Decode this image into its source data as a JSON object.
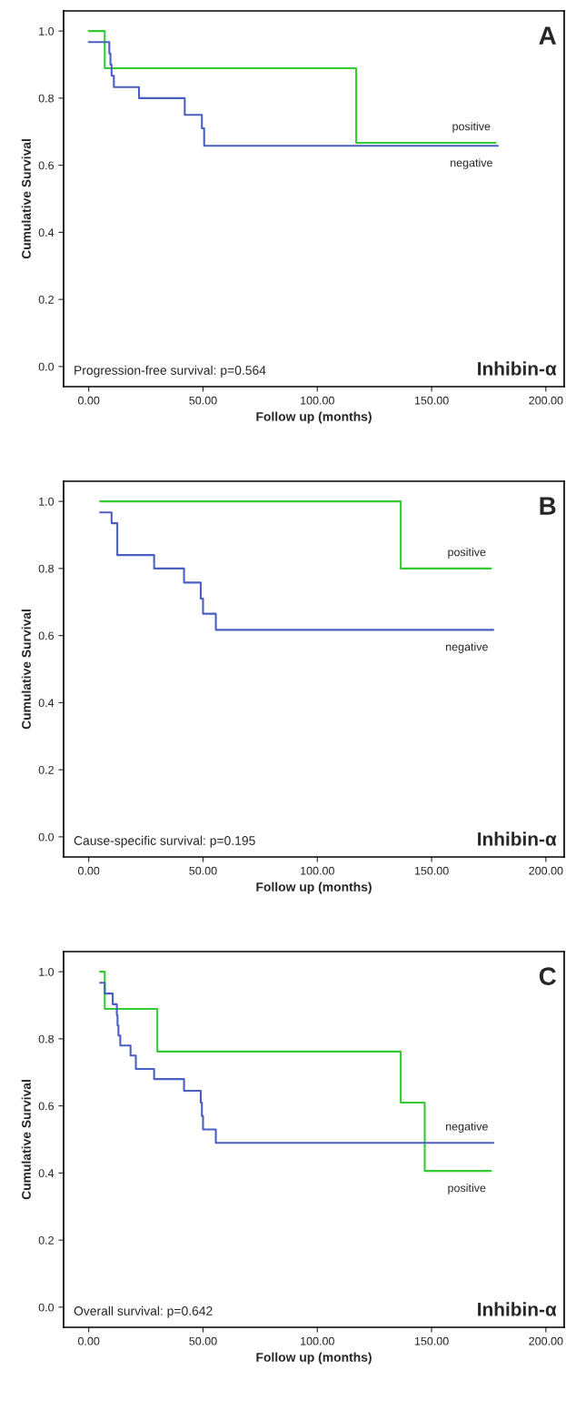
{
  "chart_data": [
    {
      "type": "step",
      "title": "A",
      "xlabel": "Follow up (months)",
      "ylabel": "Cumulative Survival",
      "xlim": [
        -11,
        208
      ],
      "ylim": [
        -0.06,
        1.06
      ],
      "xticks": [
        {
          "value": 0,
          "label": "0.00"
        },
        {
          "value": 50,
          "label": "50.00"
        },
        {
          "value": 100,
          "label": "100.00"
        },
        {
          "value": 150,
          "label": "150.00"
        },
        {
          "value": 200,
          "label": "200.00"
        }
      ],
      "yticks": [
        {
          "value": 0,
          "label": "0.0"
        },
        {
          "value": 0.2,
          "label": "0.2"
        },
        {
          "value": 0.4,
          "label": "0.4"
        },
        {
          "value": 0.6,
          "label": "0.6"
        },
        {
          "value": 0.8,
          "label": "0.8"
        },
        {
          "value": 1.0,
          "label": "1.0"
        }
      ],
      "annotations": [
        "Progression-free survival: p=0.564",
        "Inhibin-α"
      ],
      "series": [
        {
          "name": "positive",
          "color": "#33cc33",
          "x": [
            0,
            7,
            117,
            178
          ],
          "values": [
            1.0,
            0.889,
            0.667,
            0.667
          ]
        },
        {
          "name": "negative",
          "color": "#4a5fc1",
          "x": [
            0,
            9,
            9.5,
            10,
            11,
            22,
            42,
            49.5,
            50.5,
            179
          ],
          "values": [
            0.967,
            0.933,
            0.9,
            0.867,
            0.833,
            0.8,
            0.75,
            0.71,
            0.658,
            0.658
          ]
        }
      ]
    },
    {
      "type": "step",
      "title": "B",
      "xlabel": "Follow up (months)",
      "ylabel": "Cumulative Survival",
      "xlim": [
        -11,
        208
      ],
      "ylim": [
        -0.06,
        1.06
      ],
      "xticks": [
        {
          "value": 0,
          "label": "0.00"
        },
        {
          "value": 50,
          "label": "50.00"
        },
        {
          "value": 100,
          "label": "100.00"
        },
        {
          "value": 150,
          "label": "150.00"
        },
        {
          "value": 200,
          "label": "200.00"
        }
      ],
      "yticks": [
        {
          "value": 0,
          "label": "0.0"
        },
        {
          "value": 0.2,
          "label": "0.2"
        },
        {
          "value": 0.4,
          "label": "0.4"
        },
        {
          "value": 0.6,
          "label": "0.6"
        },
        {
          "value": 0.8,
          "label": "0.8"
        },
        {
          "value": 1.0,
          "label": "1.0"
        }
      ],
      "annotations": [
        "Cause-specific survival: p=0.195",
        "Inhibin-α"
      ],
      "series": [
        {
          "name": "positive",
          "color": "#33cc33",
          "x": [
            5,
            136.5,
            176
          ],
          "values": [
            1.0,
            0.8,
            0.8
          ]
        },
        {
          "name": "negative",
          "color": "#4a5fc1",
          "x": [
            5,
            10,
            12.5,
            28.6,
            41.7,
            49,
            50,
            55.6,
            177
          ],
          "values": [
            0.967,
            0.935,
            0.84,
            0.8,
            0.758,
            0.71,
            0.665,
            0.617,
            0.617
          ]
        }
      ]
    },
    {
      "type": "step",
      "title": "C",
      "xlabel": "Follow up (months)",
      "ylabel": "Cumulative Survival",
      "xlim": [
        -11,
        208
      ],
      "ylim": [
        -0.06,
        1.06
      ],
      "xticks": [
        {
          "value": 0,
          "label": "0.00"
        },
        {
          "value": 50,
          "label": "50.00"
        },
        {
          "value": 100,
          "label": "100.00"
        },
        {
          "value": 150,
          "label": "150.00"
        },
        {
          "value": 200,
          "label": "200.00"
        }
      ],
      "yticks": [
        {
          "value": 0,
          "label": "0.0"
        },
        {
          "value": 0.2,
          "label": "0.2"
        },
        {
          "value": 0.4,
          "label": "0.4"
        },
        {
          "value": 0.6,
          "label": "0.6"
        },
        {
          "value": 0.8,
          "label": "0.8"
        },
        {
          "value": 1.0,
          "label": "1.0"
        }
      ],
      "annotations": [
        "Overall survival: p=0.642",
        "Inhibin-α"
      ],
      "series": [
        {
          "name": "positive",
          "color": "#33cc33",
          "x": [
            5,
            7,
            30,
            136.5,
            147,
            176
          ],
          "values": [
            1.0,
            0.889,
            0.762,
            0.61,
            0.406,
            0.406
          ]
        },
        {
          "name": "negative",
          "color": "#4a5fc1",
          "x": [
            5,
            7,
            10.5,
            12.3,
            12.6,
            13,
            13.8,
            18.3,
            20.6,
            28.6,
            41.7,
            49,
            49.5,
            50,
            55.6,
            177
          ],
          "values": [
            0.967,
            0.935,
            0.903,
            0.87,
            0.84,
            0.81,
            0.78,
            0.75,
            0.71,
            0.68,
            0.645,
            0.61,
            0.57,
            0.53,
            0.49,
            0.49
          ]
        }
      ]
    }
  ]
}
